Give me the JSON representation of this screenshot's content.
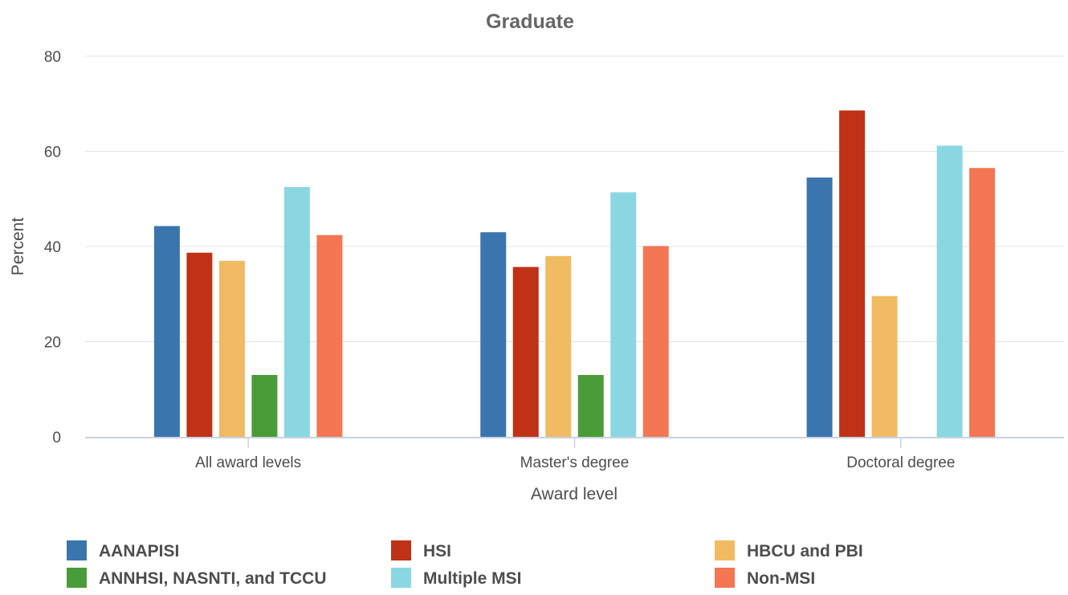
{
  "chart_data": {
    "type": "bar",
    "title": "Graduate",
    "xlabel": "Award level",
    "ylabel": "Percent",
    "ylim": [
      0,
      80
    ],
    "yticks": [
      0,
      20,
      40,
      60,
      80
    ],
    "grid": true,
    "legend_position": "bottom",
    "categories": [
      "All award levels",
      "Master's degree",
      "Doctoral degree"
    ],
    "series": [
      {
        "name": "AANAPISI",
        "color": "#3a75ae",
        "values": [
          44.3,
          43.0,
          54.5
        ]
      },
      {
        "name": "HSI",
        "color": "#bf3216",
        "values": [
          38.7,
          35.7,
          68.6
        ]
      },
      {
        "name": "HBCU and PBI",
        "color": "#f0bb62",
        "values": [
          37.0,
          38.0,
          29.6
        ]
      },
      {
        "name": "ANNHSI, NASNTI, and TCCU",
        "color": "#4a9c38",
        "values": [
          13.0,
          13.0,
          null
        ]
      },
      {
        "name": "Multiple MSI",
        "color": "#8ad7e2",
        "values": [
          52.5,
          51.4,
          61.2
        ]
      },
      {
        "name": "Non-MSI",
        "color": "#f47652",
        "values": [
          42.4,
          40.1,
          56.5
        ]
      }
    ]
  }
}
